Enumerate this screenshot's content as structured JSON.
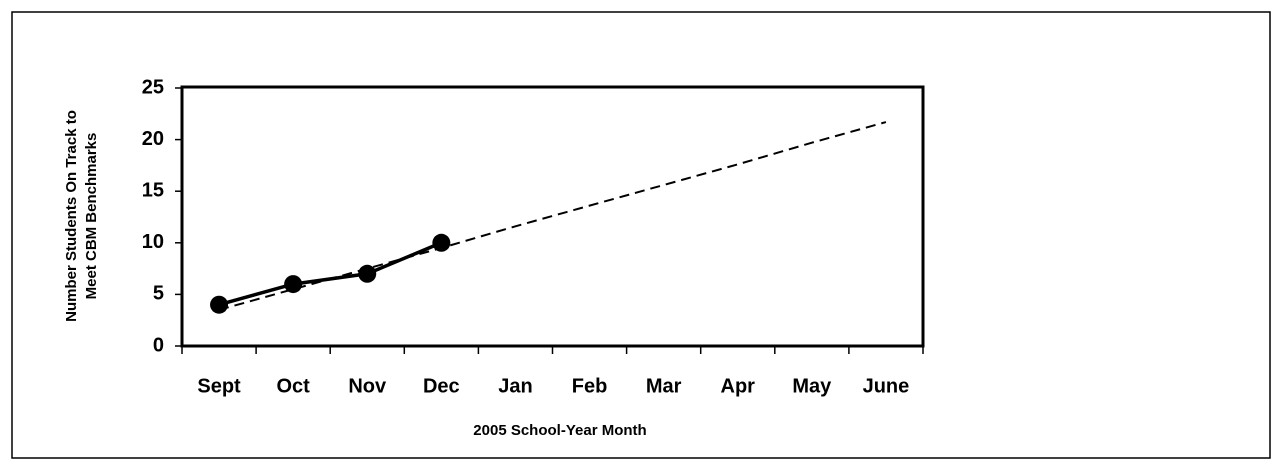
{
  "chart_data": {
    "type": "line",
    "y_label": [
      "Number Students On Track to",
      "Meet CBM Benchmarks"
    ],
    "x_label": "2005 School-Year Month",
    "categories": [
      "Sept",
      "Oct",
      "Nov",
      "Dec",
      "Jan",
      "Feb",
      "Mar",
      "Apr",
      "May",
      "June"
    ],
    "series": [
      {
        "color": "#000000",
        "marker": "circle",
        "values": [
          4,
          6,
          7,
          10,
          null,
          null,
          null,
          null,
          null,
          null
        ]
      },
      {
        "color": "#000000",
        "dashed": true,
        "values": [
          3.5,
          5.5,
          7.5,
          9.5,
          11.6,
          13.6,
          15.6,
          17.6,
          19.7,
          21.7
        ]
      }
    ],
    "ylim": [
      0,
      25
    ],
    "yticks": [
      0,
      5,
      10,
      15,
      20,
      25
    ],
    "grid": false
  }
}
